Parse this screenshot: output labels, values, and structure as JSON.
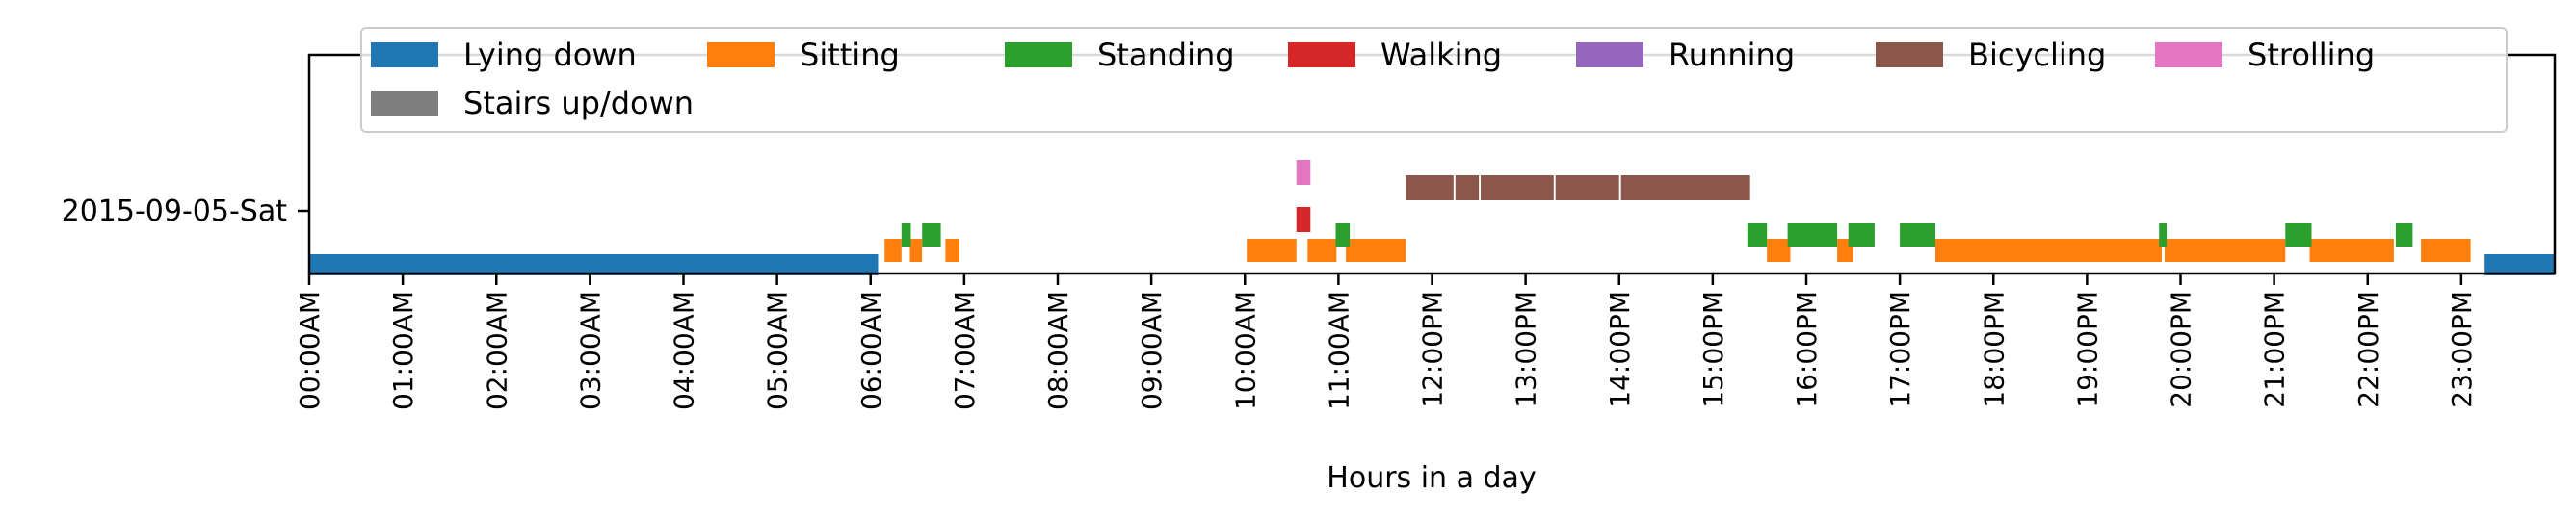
{
  "chart_data": {
    "type": "timeline",
    "xlabel": "Hours in a day",
    "ylabel": "",
    "xlim": [
      0,
      24
    ],
    "grid": false,
    "legend_placement": "top",
    "day_label": "2015-09-05-Sat",
    "x_tick_labels": [
      "00:00AM",
      "01:00AM",
      "02:00AM",
      "03:00AM",
      "04:00AM",
      "05:00AM",
      "06:00AM",
      "07:00AM",
      "08:00AM",
      "09:00AM",
      "10:00AM",
      "11:00AM",
      "12:00PM",
      "13:00PM",
      "14:00PM",
      "15:00PM",
      "16:00PM",
      "17:00PM",
      "18:00PM",
      "19:00PM",
      "20:00PM",
      "21:00PM",
      "22:00PM",
      "23:00PM"
    ],
    "series": [
      {
        "name": "Lying down",
        "color": "#1f77b4",
        "segments": [
          [
            0.0,
            6.08
          ],
          [
            23.25,
            24.0
          ]
        ]
      },
      {
        "name": "Sitting",
        "color": "#ff7f0e",
        "segments": [
          [
            6.15,
            6.33
          ],
          [
            6.42,
            6.55
          ],
          [
            6.8,
            6.95
          ],
          [
            10.02,
            10.55
          ],
          [
            10.67,
            10.98
          ],
          [
            11.08,
            11.72
          ],
          [
            15.58,
            15.83
          ],
          [
            16.33,
            16.5
          ],
          [
            17.38,
            19.8
          ],
          [
            19.83,
            21.12
          ],
          [
            21.38,
            22.28
          ],
          [
            22.57,
            23.1
          ]
        ]
      },
      {
        "name": "Standing",
        "color": "#2ca02c",
        "segments": [
          [
            6.33,
            6.43
          ],
          [
            6.55,
            6.75
          ],
          [
            10.97,
            11.12
          ],
          [
            15.37,
            15.58
          ],
          [
            15.8,
            16.33
          ],
          [
            16.45,
            16.73
          ],
          [
            17.0,
            17.38
          ],
          [
            19.77,
            19.85
          ],
          [
            21.12,
            21.4
          ],
          [
            22.3,
            22.48
          ]
        ]
      },
      {
        "name": "Walking",
        "color": "#d62728",
        "segments": [
          [
            10.55,
            10.7
          ]
        ]
      },
      {
        "name": "Running",
        "color": "#9467bd",
        "segments": []
      },
      {
        "name": "Bicycling",
        "color": "#8c564b",
        "segments": [
          [
            11.72,
            12.23
          ],
          [
            12.25,
            12.5
          ],
          [
            12.52,
            13.3
          ],
          [
            13.32,
            14.0
          ],
          [
            14.02,
            15.4
          ]
        ]
      },
      {
        "name": "Strolling",
        "color": "#e377c2",
        "segments": [
          [
            10.55,
            10.7
          ]
        ]
      },
      {
        "name": "Stairs up/down",
        "color": "#7f7f7f",
        "segments": []
      }
    ]
  }
}
